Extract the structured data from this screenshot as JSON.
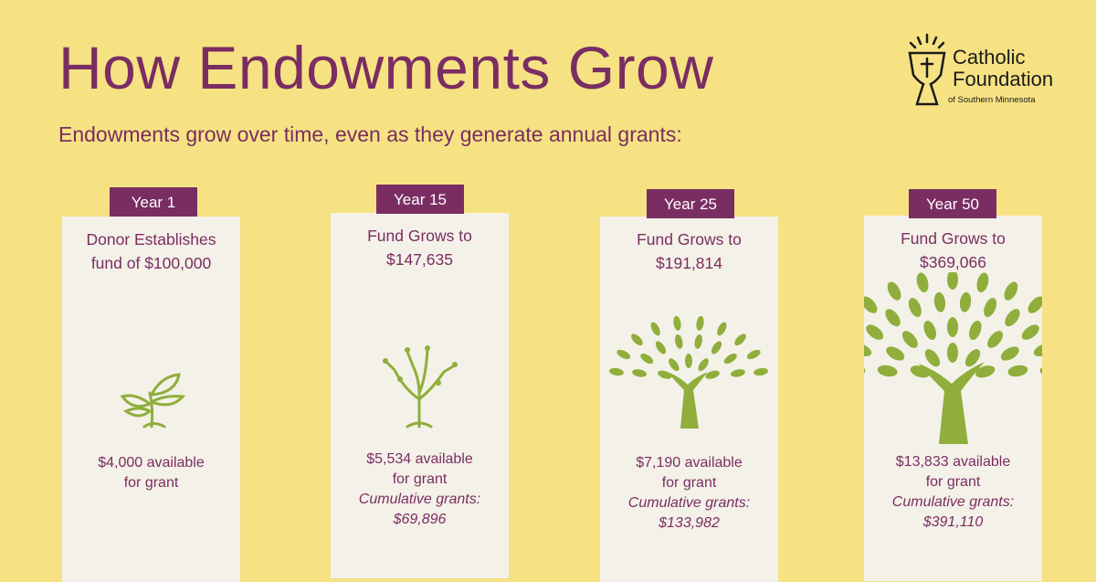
{
  "title": "How Endowments Grow",
  "subtitle": "Endowments grow over time, even as they generate annual grants:",
  "logo": {
    "line1": "Catholic",
    "line2": "Foundation",
    "line3": "of Southern Minnesota"
  },
  "colors": {
    "background": "#f6e283",
    "accent": "#7a2d62",
    "card": "#f4f1e8",
    "tree": "#8fae3b"
  },
  "stages": [
    {
      "year": "Year 1",
      "heading_1": "Donor Establishes",
      "heading_2": "fund of $100,000",
      "icon": "seedling-icon",
      "grant_1": "$4,000 available",
      "grant_2": "for grant"
    },
    {
      "year": "Year 15",
      "heading_1": "Fund Grows to",
      "heading_2": "$147,635",
      "icon": "sapling-icon",
      "grant_1": "$5,534 available",
      "grant_2": "for grant",
      "cumulative_label": "Cumulative grants:",
      "cumulative_value": "$69,896"
    },
    {
      "year": "Year 25",
      "heading_1": "Fund Grows to",
      "heading_2": "$191,814",
      "icon": "tree-icon",
      "grant_1": "$7,190 available",
      "grant_2": "for grant",
      "cumulative_label": "Cumulative grants:",
      "cumulative_value": "$133,982"
    },
    {
      "year": "Year 50",
      "heading_1": "Fund Grows to",
      "heading_2": "$369,066",
      "icon": "large-tree-icon",
      "grant_1": "$13,833 available",
      "grant_2": "for grant",
      "cumulative_label": "Cumulative grants:",
      "cumulative_value": "$391,110"
    }
  ]
}
